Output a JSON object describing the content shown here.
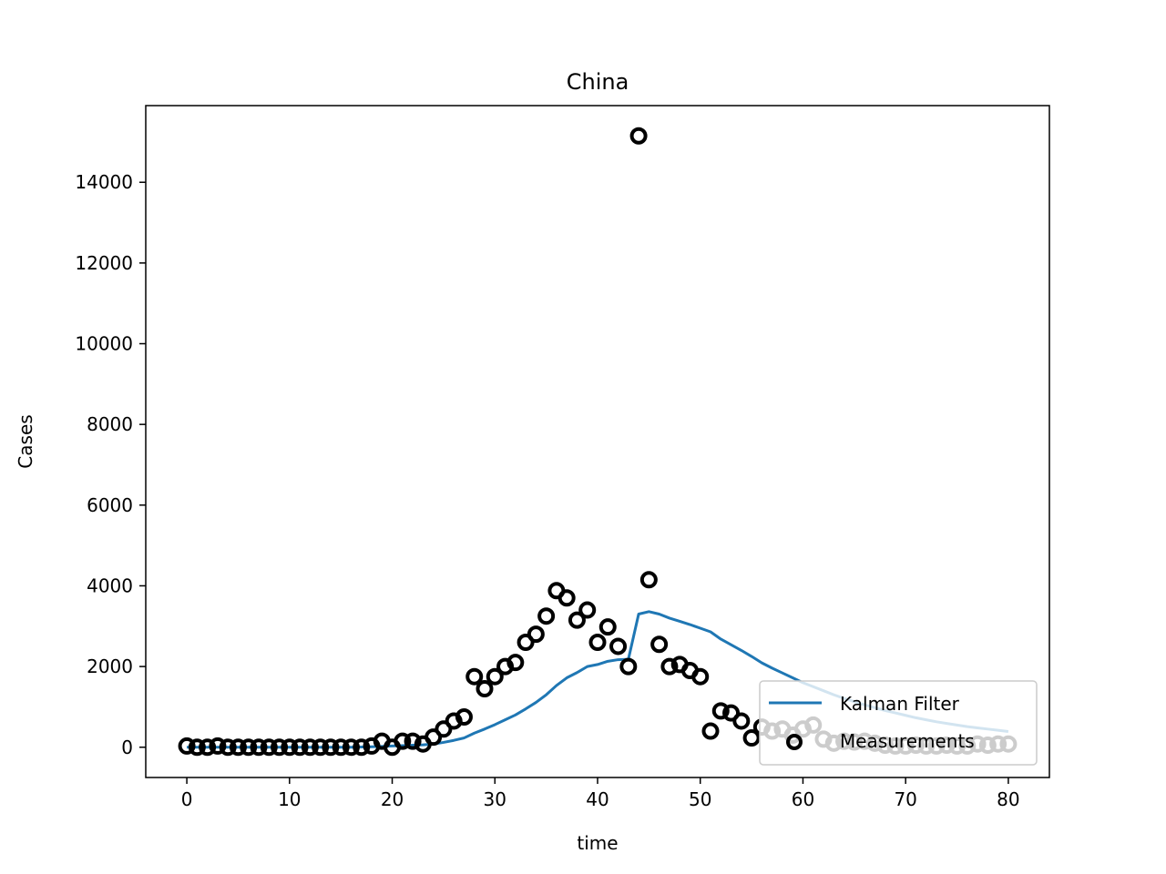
{
  "chart_data": {
    "type": "line",
    "title": "China",
    "xlabel": "time",
    "ylabel": "Cases",
    "xlim": [
      -4,
      84
    ],
    "ylim": [
      -750,
      15900
    ],
    "xticks": [
      0,
      10,
      20,
      30,
      40,
      50,
      60,
      70,
      80
    ],
    "yticks": [
      0,
      2000,
      4000,
      6000,
      8000,
      10000,
      12000,
      14000
    ],
    "grid": false,
    "legend_position": "lower-right",
    "colors": {
      "kalman": "#1f77b4",
      "measurements": "#000000"
    },
    "series": [
      {
        "name": "Kalman Filter",
        "style": "line",
        "x": [
          0,
          1,
          2,
          3,
          4,
          5,
          6,
          7,
          8,
          9,
          10,
          11,
          12,
          13,
          14,
          15,
          16,
          17,
          18,
          19,
          20,
          21,
          22,
          23,
          24,
          25,
          26,
          27,
          28,
          29,
          30,
          31,
          32,
          33,
          34,
          35,
          36,
          37,
          38,
          39,
          40,
          41,
          42,
          43,
          44,
          45,
          46,
          47,
          48,
          49,
          50,
          51,
          52,
          53,
          54,
          55,
          56,
          57,
          58,
          59,
          60,
          61,
          62,
          63,
          64,
          65,
          66,
          67,
          68,
          69,
          70,
          71,
          72,
          73,
          74,
          75,
          76,
          77,
          78,
          79,
          80
        ],
        "y": [
          0,
          0,
          0,
          0,
          0,
          0,
          0,
          0,
          0,
          0,
          0,
          0,
          0,
          0,
          0,
          0,
          0,
          5,
          10,
          20,
          30,
          40,
          50,
          60,
          80,
          120,
          170,
          230,
          350,
          450,
          560,
          680,
          800,
          950,
          1110,
          1300,
          1530,
          1720,
          1850,
          2000,
          2050,
          2130,
          2170,
          2180,
          3300,
          3360,
          3300,
          3200,
          3120,
          3040,
          2950,
          2860,
          2680,
          2540,
          2400,
          2250,
          2090,
          1960,
          1840,
          1720,
          1600,
          1500,
          1400,
          1300,
          1210,
          1130,
          1050,
          980,
          910,
          850,
          790,
          730,
          680,
          630,
          590,
          550,
          510,
          480,
          450,
          420,
          390
        ]
      },
      {
        "name": "Measurements",
        "style": "scatter",
        "x": [
          0,
          1,
          2,
          3,
          4,
          5,
          6,
          7,
          8,
          9,
          10,
          11,
          12,
          13,
          14,
          15,
          16,
          17,
          18,
          19,
          20,
          21,
          22,
          23,
          24,
          25,
          26,
          27,
          28,
          29,
          30,
          31,
          32,
          33,
          34,
          35,
          36,
          37,
          38,
          39,
          40,
          41,
          42,
          43,
          44,
          45,
          46,
          47,
          48,
          49,
          50,
          51,
          52,
          53,
          54,
          55,
          56,
          57,
          58,
          59,
          60,
          61,
          62,
          63,
          64,
          65,
          66,
          67,
          68,
          69,
          70,
          71,
          72,
          73,
          74,
          75,
          76,
          77,
          78,
          79,
          80
        ],
        "y": [
          30,
          0,
          0,
          30,
          0,
          0,
          0,
          0,
          0,
          0,
          0,
          0,
          0,
          0,
          0,
          0,
          0,
          0,
          30,
          150,
          0,
          150,
          150,
          80,
          250,
          450,
          650,
          750,
          1750,
          1450,
          1750,
          2000,
          2100,
          2600,
          2800,
          3250,
          3880,
          3700,
          3150,
          3400,
          2600,
          2980,
          2500,
          2000,
          15150,
          4150,
          2550,
          2000,
          2050,
          1900,
          1750,
          400,
          900,
          850,
          650,
          230,
          500,
          400,
          450,
          300,
          450,
          550,
          200,
          100,
          150,
          130,
          150,
          100,
          50,
          30,
          30,
          50,
          30,
          30,
          50,
          30,
          30,
          80,
          50,
          80,
          80
        ]
      }
    ]
  }
}
